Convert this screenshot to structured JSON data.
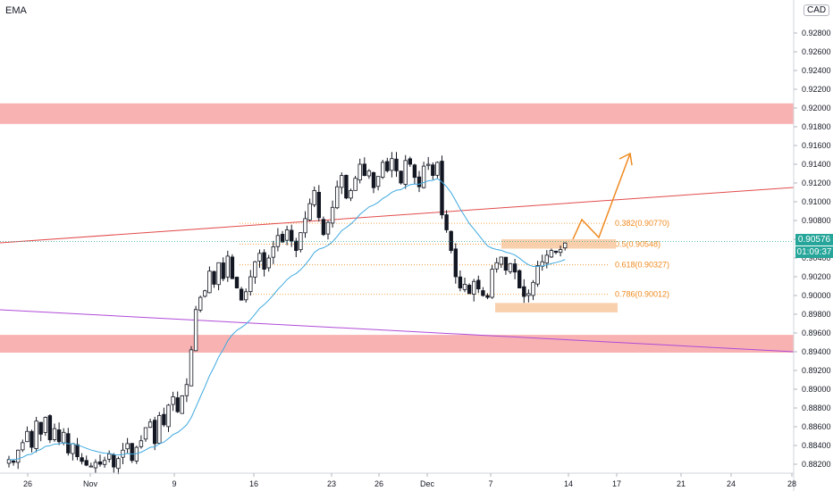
{
  "indicator_label": "EMA",
  "currency_badge": "CAD",
  "last_price": "0.90576",
  "countdown": "01:09:37",
  "colors": {
    "up": "#131722",
    "down": "#131722",
    "ema": "#3fa9e0",
    "zone": "#f8a5a5",
    "trendline_red": "#e24b4b",
    "trendline_purple": "#b04ad8",
    "fib": "#f0891f",
    "fib_box": "#f8c8a0",
    "price_tag": "#26a69a"
  },
  "chart_data": {
    "type": "candlestick",
    "symbol_currency": "CAD",
    "y_ticks": [
      "0.92800",
      "0.92600",
      "0.92400",
      "0.92200",
      "0.92000",
      "0.91800",
      "0.91600",
      "0.91400",
      "0.91200",
      "0.91000",
      "0.90800",
      "0.90600",
      "0.90400",
      "0.90200",
      "0.90000",
      "0.89800",
      "0.89600",
      "0.89400",
      "0.89200",
      "0.89000",
      "0.88800",
      "0.88600",
      "0.88400",
      "0.88200"
    ],
    "x_ticks": [
      "26",
      "Nov",
      "9",
      "16",
      "23",
      "26",
      "Dec",
      "7",
      "14",
      "17",
      "21",
      "24",
      "28"
    ],
    "ylim": [
      0.8812,
      0.9308
    ],
    "resistance_zone": [
      0.9183,
      0.9205
    ],
    "support_zone": [
      0.8939,
      0.8958
    ],
    "fib_levels": [
      {
        "label": "0.382(0.90770)",
        "value": 0.9077
      },
      {
        "label": "0.5(0.90548)",
        "value": 0.90548
      },
      {
        "label": "0.618(0.90327)",
        "value": 0.90327
      },
      {
        "label": "0.786(0.90012)",
        "value": 0.90012
      }
    ],
    "last_price": 0.90576,
    "closes": [
      0.8825,
      0.8822,
      0.8835,
      0.8843,
      0.8855,
      0.8838,
      0.8866,
      0.8852,
      0.887,
      0.8846,
      0.8858,
      0.8844,
      0.8854,
      0.8832,
      0.8842,
      0.8828,
      0.8823,
      0.8819,
      0.8818,
      0.8822,
      0.882,
      0.8824,
      0.8831,
      0.8817,
      0.8826,
      0.8835,
      0.8842,
      0.8824,
      0.8838,
      0.8845,
      0.8859,
      0.8865,
      0.8842,
      0.8872,
      0.8862,
      0.8883,
      0.8892,
      0.8876,
      0.8893,
      0.8905,
      0.8942,
      0.8985,
      0.8998,
      0.9005,
      0.9026,
      0.9012,
      0.9035,
      0.9018,
      0.9042,
      0.9018,
      0.9008,
      0.8995,
      0.9004,
      0.902,
      0.9036,
      0.9045,
      0.9028,
      0.904,
      0.9052,
      0.9064,
      0.9057,
      0.907,
      0.9058,
      0.9048,
      0.9067,
      0.9082,
      0.9098,
      0.9112,
      0.9083,
      0.9065,
      0.9078,
      0.9094,
      0.9116,
      0.9128,
      0.9104,
      0.9112,
      0.9125,
      0.914,
      0.9128,
      0.9133,
      0.9115,
      0.9127,
      0.9142,
      0.9133,
      0.9146,
      0.9133,
      0.912,
      0.9144,
      0.914,
      0.9126,
      0.9116,
      0.9138,
      0.914,
      0.9128,
      0.9142,
      0.9086,
      0.907,
      0.9048,
      0.902,
      0.9008,
      0.9012,
      0.9002,
      0.9015,
      0.9007,
      0.9,
      0.8998,
      0.9028,
      0.9035,
      0.9041,
      0.9027,
      0.9034,
      0.9025,
      0.9008,
      0.8999,
      0.9002,
      0.9014,
      0.9032,
      0.9036,
      0.9043,
      0.9048,
      0.9046,
      0.9049,
      0.9056
    ],
    "ema_period_label": "EMA"
  }
}
